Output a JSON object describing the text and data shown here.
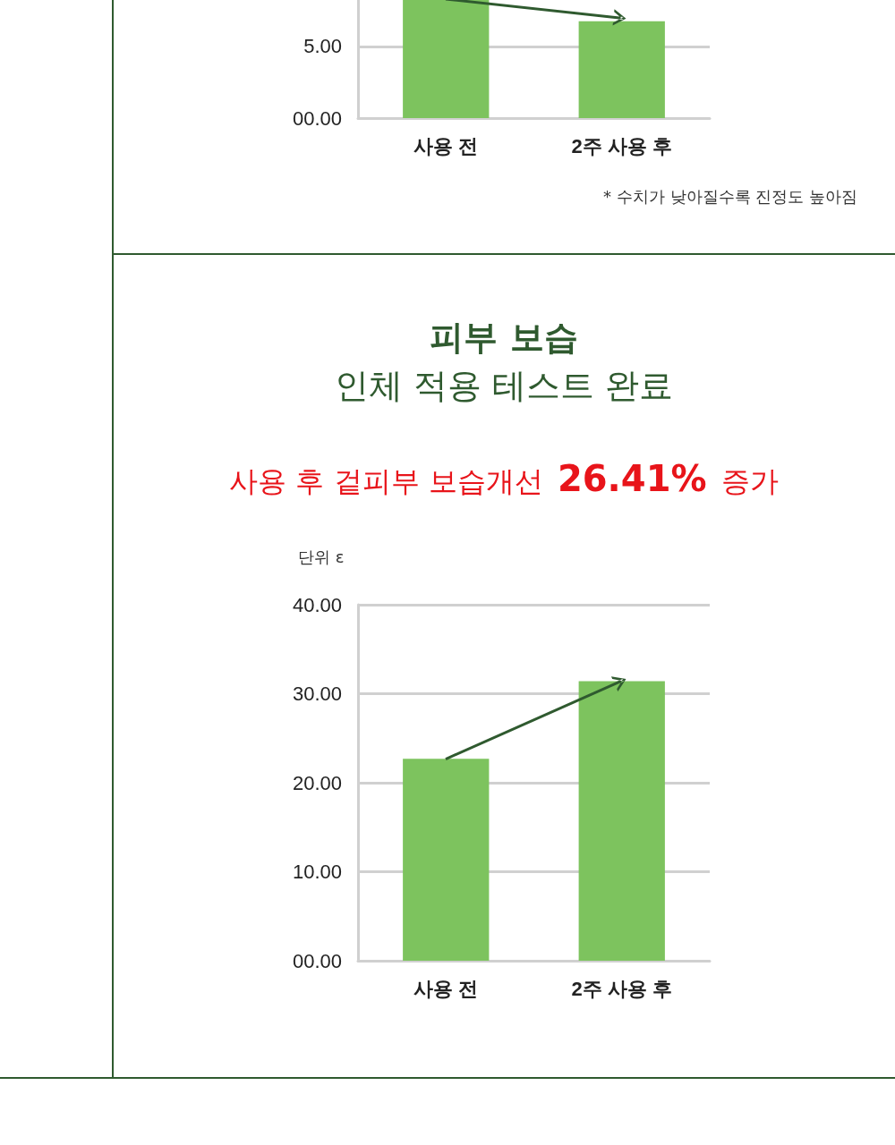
{
  "chart_data": [
    {
      "type": "bar",
      "categories": [
        "사용 전",
        "2주 사용 후"
      ],
      "values": [
        8.3,
        6.75
      ],
      "color": "#7dc35e",
      "ylim": [
        0,
        8.3
      ],
      "yticks": [
        {
          "value": 0,
          "label": "00.00"
        },
        {
          "value": 5,
          "label": "5.00"
        }
      ],
      "grid": "y",
      "annotations": [
        "* 수치가 낮아질수록 진정도 높아짐"
      ]
    },
    {
      "type": "bar",
      "title": "피부 보습",
      "subtitle": "인체 적용 테스트 완료",
      "annotations": [
        "사용 후 겉피부 보습개선 26.41% 증가"
      ],
      "ylabel": "단위 ε",
      "categories": [
        "사용 전",
        "2주 사용 후"
      ],
      "values": [
        22.7,
        31.4
      ],
      "color": "#7dc35e",
      "ylim": [
        0,
        40
      ],
      "yticks": [
        {
          "value": 0,
          "label": "00.00"
        },
        {
          "value": 10,
          "label": "10.00"
        },
        {
          "value": 20,
          "label": "20.00"
        },
        {
          "value": 30,
          "label": "30.00"
        },
        {
          "value": 40,
          "label": "40.00"
        }
      ],
      "grid": "y"
    }
  ]
}
